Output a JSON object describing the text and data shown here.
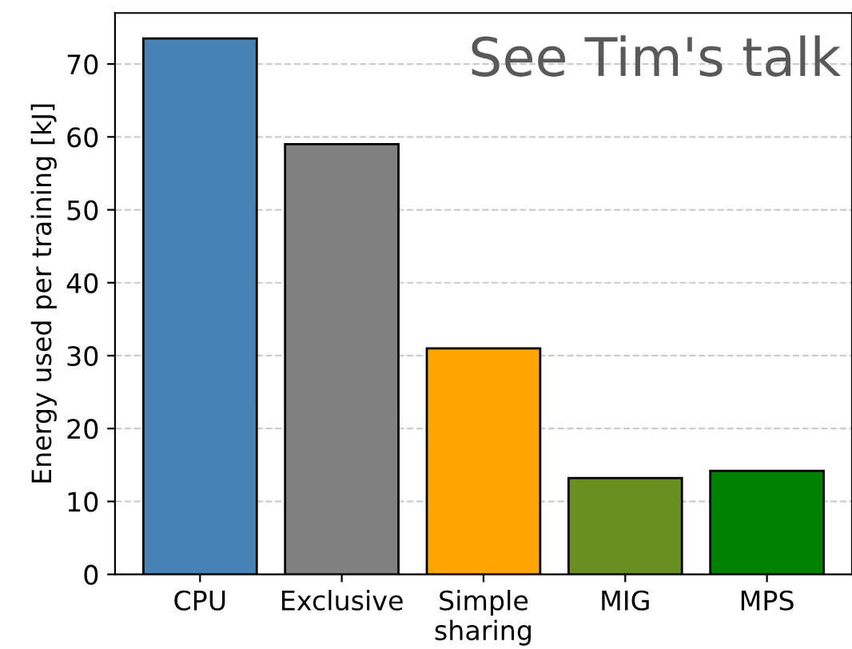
{
  "chart_data": {
    "type": "bar",
    "categories": [
      "CPU",
      "Exclusive",
      "Simple\nsharing",
      "MIG",
      "MPS"
    ],
    "values": [
      73.5,
      59,
      31,
      13.2,
      14.2
    ],
    "colors": [
      "#4682b4",
      "#808080",
      "#ffa500",
      "#6b8e23",
      "#008000"
    ],
    "ylabel": "Energy used per training [kJ]",
    "ylim": [
      0,
      77
    ],
    "yticks": [
      0,
      10,
      20,
      30,
      40,
      50,
      60,
      70
    ],
    "grid": "y",
    "annotations": [
      "See Tim's talk"
    ]
  }
}
